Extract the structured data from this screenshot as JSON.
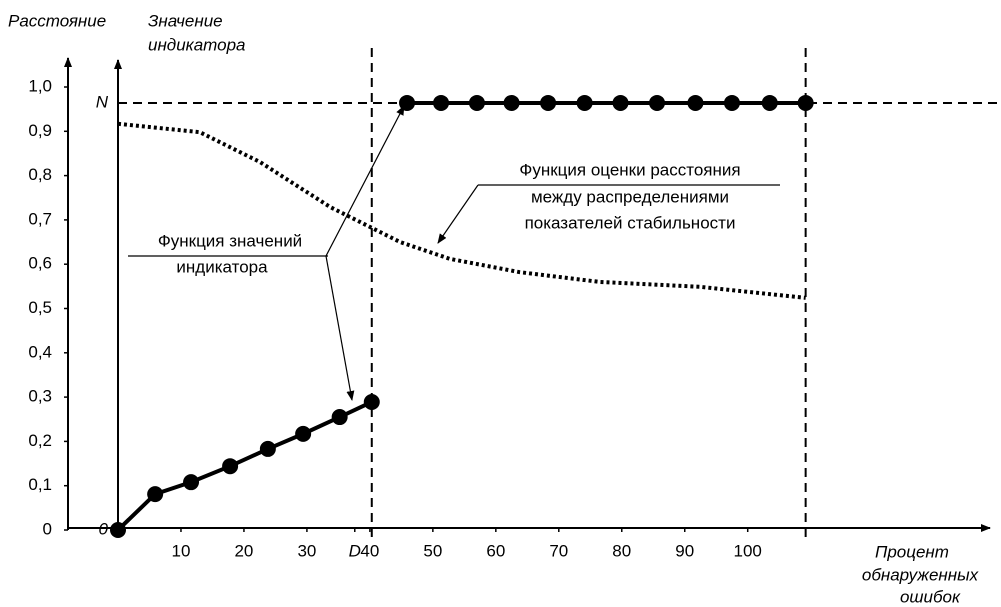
{
  "chart_data": {
    "type": "line",
    "ylabel": "Расстояние",
    "y2label": [
      "Значение",
      "индикатора"
    ],
    "xlabel": [
      "Процент",
      "обнаруженных",
      "ошибок"
    ],
    "xlim": [
      0,
      138
    ],
    "xticks": [
      10,
      20,
      30,
      {
        "value": 37.6,
        "label": "D"
      },
      40,
      50,
      60,
      70,
      80,
      90,
      100
    ],
    "ylim": [
      0,
      1
    ],
    "yticks": [
      0,
      {
        "value": 0.1,
        "label": "0,1"
      },
      {
        "value": 0.2,
        "label": "0,2"
      },
      {
        "value": 0.3,
        "label": "0,3"
      },
      {
        "value": 0.4,
        "label": "0,4"
      },
      {
        "value": 0.5,
        "label": "0,5"
      },
      {
        "value": 0.6,
        "label": "0,6"
      },
      {
        "value": 0.7,
        "label": "0,7"
      },
      {
        "value": 0.8,
        "label": "0,8"
      },
      {
        "value": 0.9,
        "label": "0,9"
      },
      {
        "value": 1,
        "label": "1,0"
      }
    ],
    "y2lim": [
      0,
      1
    ],
    "y2ticks": [
      0,
      {
        "value": 0.964,
        "label": "N"
      }
    ],
    "vlines": [
      40.3,
      109.2
    ],
    "series": [
      {
        "color": "#000000",
        "style": "solid-markers",
        "x": [
          0,
          5.9,
          11.6,
          17.8,
          23.8,
          29.4,
          35.2,
          40.3
        ],
        "values": [
          0,
          0.081,
          0.108,
          0.144,
          0.183,
          0.217,
          0.255,
          0.289
        ]
      },
      {
        "color": "#000000",
        "style": "solid-markers",
        "x": [
          45.9,
          51.3,
          57,
          62.5,
          68.3,
          74.1,
          79.8,
          85.6,
          91.7,
          97.5,
          103.5,
          109.2
        ],
        "values": [
          0.964,
          0.964,
          0.964,
          0.964,
          0.964,
          0.964,
          0.964,
          0.964,
          0.964,
          0.964,
          0.964,
          0.964
        ]
      },
      {
        "color": "#000000",
        "style": "dotted",
        "x": [
          0,
          13,
          22.5,
          33.7,
          44.8,
          52.7,
          63.8,
          76.5,
          92.4,
          109.2
        ],
        "values": [
          0.917,
          0.898,
          0.831,
          0.729,
          0.65,
          0.612,
          0.582,
          0.56,
          0.549,
          0.524
        ]
      }
    ],
    "annotations": [
      {
        "lines": [
          "Функция значений",
          "индикатора"
        ]
      },
      {
        "lines": [
          "Функция оценки расстояния",
          "между распределениями",
          "показателей стабильности"
        ]
      }
    ]
  }
}
